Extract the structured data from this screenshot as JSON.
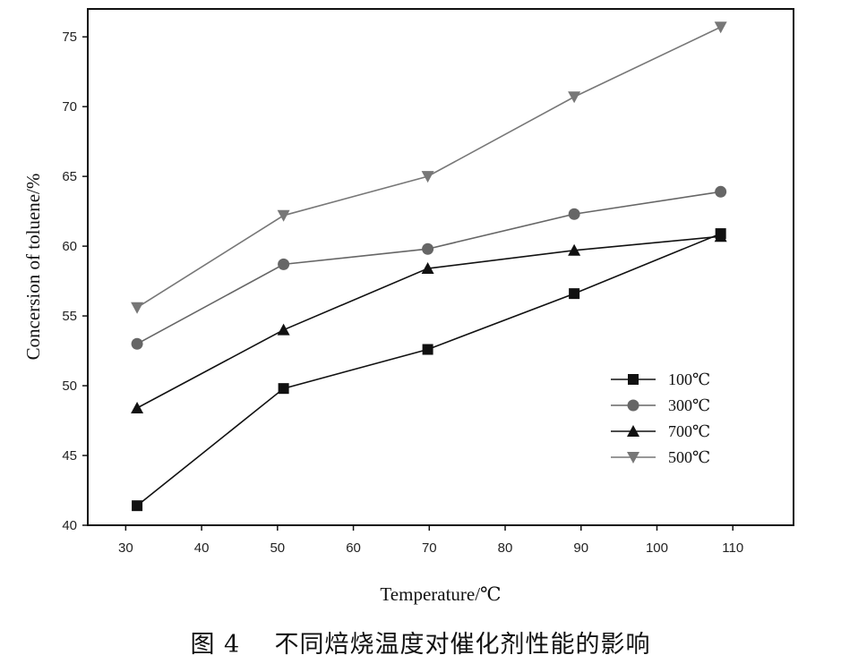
{
  "chart_data": {
    "type": "line",
    "xlabel": "Temperature/℃",
    "ylabel": "Concersion of toluene/%",
    "xlim": [
      25,
      118
    ],
    "ylim": [
      40,
      77
    ],
    "xticks": [
      30,
      40,
      50,
      60,
      70,
      80,
      90,
      100,
      110
    ],
    "yticks": [
      40,
      45,
      50,
      55,
      60,
      65,
      70,
      75
    ],
    "grid": false,
    "legend_position": "right",
    "series": [
      {
        "name": "100℃",
        "marker": "square",
        "color": "#111111",
        "x": [
          31.5,
          50.8,
          69.8,
          89.1,
          108.4
        ],
        "y": [
          41.4,
          49.8,
          52.6,
          56.6,
          60.9
        ]
      },
      {
        "name": "300℃",
        "marker": "circle",
        "color": "#666666",
        "x": [
          31.5,
          50.8,
          69.8,
          89.1,
          108.4
        ],
        "y": [
          53.0,
          58.7,
          59.8,
          62.3,
          63.9
        ]
      },
      {
        "name": "700℃",
        "marker": "triangle-up",
        "color": "#111111",
        "x": [
          31.5,
          50.8,
          69.8,
          89.1,
          108.4
        ],
        "y": [
          48.4,
          54.0,
          58.4,
          59.7,
          60.7
        ]
      },
      {
        "name": "500℃",
        "marker": "triangle-down",
        "color": "#777777",
        "x": [
          31.5,
          50.8,
          69.8,
          89.1,
          108.4
        ],
        "y": [
          55.6,
          62.2,
          65.0,
          70.7,
          75.7
        ]
      }
    ]
  },
  "caption": "图 4    不同焙烧温度对催化剂性能的影响"
}
